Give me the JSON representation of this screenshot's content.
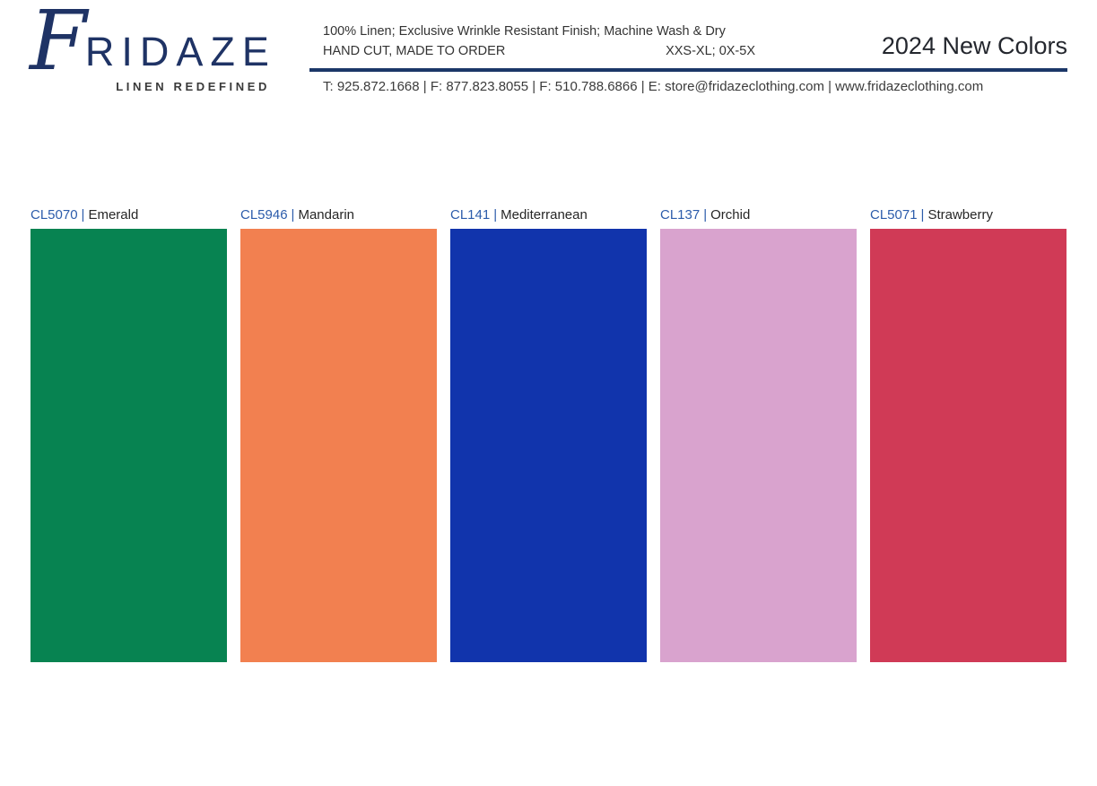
{
  "header": {
    "logo": {
      "initial": "F",
      "rest": "RIDAZE",
      "tagline": "LINEN REDEFINED"
    },
    "info": {
      "line1": "100% Linen; Exclusive Wrinkle Resistant Finish; Machine Wash & Dry",
      "line2_left": "HAND CUT, MADE TO ORDER",
      "line2_right": "XXS-XL; 0X-5X"
    },
    "title": "2024 New Colors",
    "contact": "T: 925.872.1668 | F: 877.823.8055 | F: 510.788.6866 | E: store@fridazeclothing.com | www.fridazeclothing.com"
  },
  "theme": {
    "brand_navy": "#1f3365",
    "divider_navy": "#1b3768",
    "code_blue": "#2c5cab"
  },
  "swatches": [
    {
      "code": "CL5070",
      "sep": "|",
      "name": "Emerald",
      "hex": "#078351"
    },
    {
      "code": "CL5946",
      "sep": "|",
      "name": "Mandarin",
      "hex": "#f28050"
    },
    {
      "code": "CL141",
      "sep": "|",
      "name": "Mediterranean",
      "hex": "#1134ac"
    },
    {
      "code": "CL137",
      "sep": "|",
      "name": "Orchid",
      "hex": "#d9a3ce"
    },
    {
      "code": "CL5071",
      "sep": "|",
      "name": "Strawberry",
      "hex": "#d03a56"
    }
  ]
}
